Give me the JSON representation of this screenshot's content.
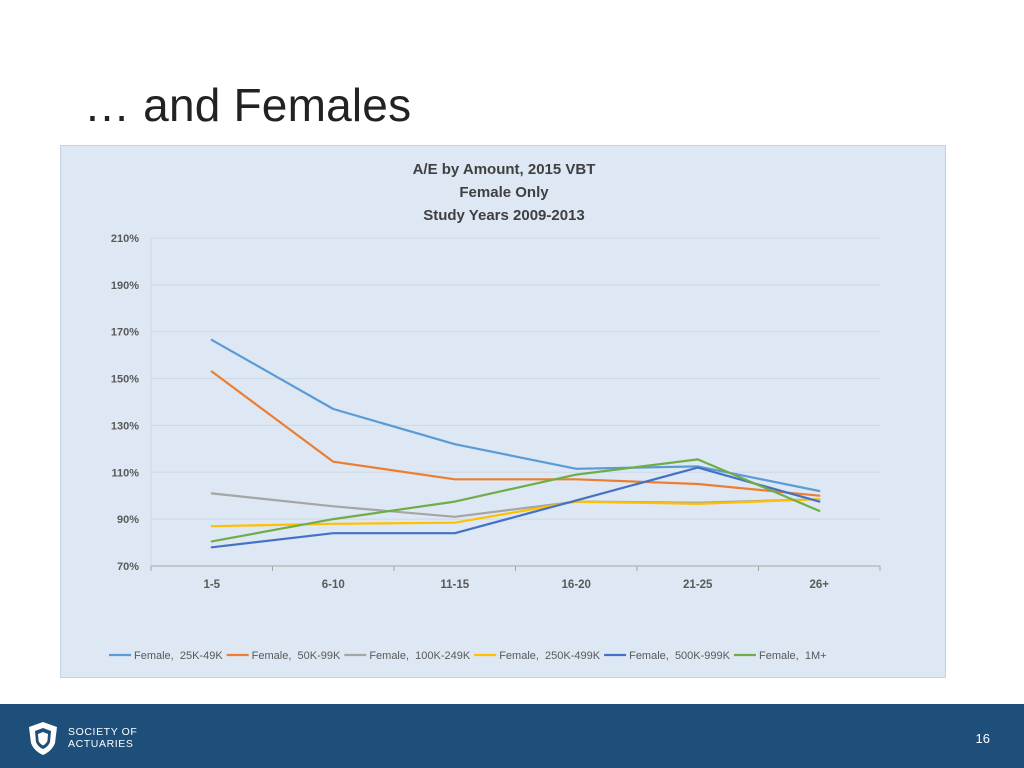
{
  "slide": {
    "title": "… and Females",
    "page_number": "16"
  },
  "footer": {
    "logo_line1": "SOCIETY OF",
    "logo_line2": "ACTUARIES"
  },
  "chart_data": {
    "type": "line",
    "title_lines": [
      "A/E by Amount, 2015 VBT",
      "Female Only",
      "Study Years 2009-2013"
    ],
    "xlabel": "",
    "ylabel": "",
    "categories": [
      "1-5",
      "6-10",
      "11-15",
      "16-20",
      "21-25",
      "26+"
    ],
    "y_ticks": [
      "70%",
      "90%",
      "110%",
      "130%",
      "150%",
      "170%",
      "190%",
      "210%"
    ],
    "ylim": [
      70,
      210
    ],
    "y_unit": "%",
    "grid": true,
    "legend_position": "bottom",
    "background": "#dde8f4",
    "series": [
      {
        "name": "Female,  25K-49K",
        "color": "#5b9bd5",
        "values": [
          166.5,
          137,
          122,
          111.5,
          112.5,
          102
        ]
      },
      {
        "name": "Female,  50K-99K",
        "color": "#ed7d31",
        "values": [
          153,
          114.5,
          107,
          107,
          105,
          100
        ]
      },
      {
        "name": "Female,  100K-249K",
        "color": "#a5a5a5",
        "values": [
          101,
          95.5,
          91,
          97.5,
          97,
          98.5
        ]
      },
      {
        "name": "Female,  250K-499K",
        "color": "#ffc000",
        "values": [
          87,
          88,
          88.5,
          97.5,
          96.5,
          98.5
        ]
      },
      {
        "name": "Female,  500K-999K",
        "color": "#4472c4",
        "values": [
          78,
          84,
          84,
          98,
          112,
          97.5
        ]
      },
      {
        "name": "Female,  1M+",
        "color": "#70ad47",
        "values": [
          80.5,
          90,
          97.5,
          109,
          115.5,
          93.5
        ]
      }
    ]
  }
}
